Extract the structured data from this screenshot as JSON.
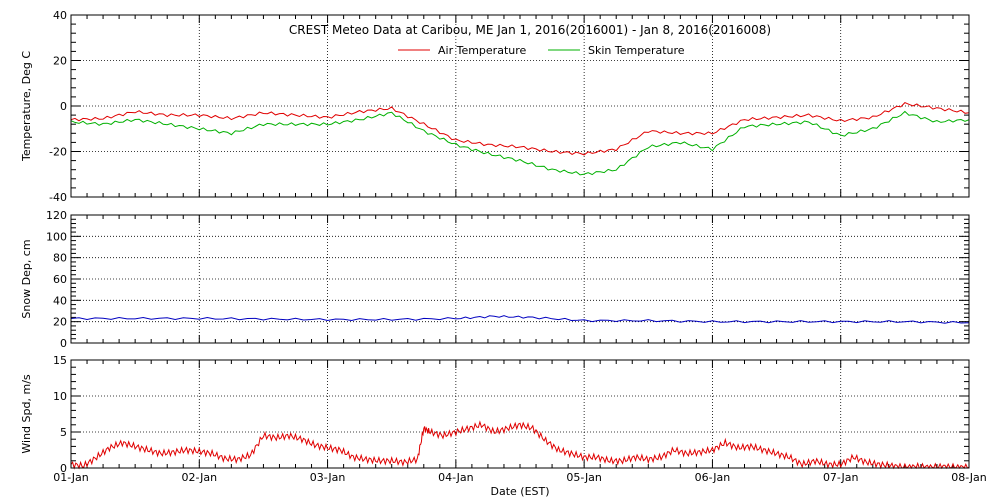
{
  "chart_data": {
    "title": "CREST Meteo Data at Caribou, ME   Jan  1, 2016(2016001) - Jan  8, 2016(2016008)",
    "xlabel": "Date (EST)",
    "x_ticks": [
      "01-Jan",
      "02-Jan",
      "03-Jan",
      "04-Jan",
      "05-Jan",
      "06-Jan",
      "07-Jan",
      "08-Jan"
    ],
    "x_range_days": [
      0,
      7
    ],
    "panels": [
      {
        "type": "line",
        "ylabel": "Temperature, Deg C",
        "ylim": [
          -40,
          40
        ],
        "yticks": [
          -40,
          -20,
          0,
          20,
          40
        ],
        "grid": true,
        "legend_position": "top-center",
        "series": [
          {
            "name": "Air Temperature",
            "color": "#e00000",
            "x": [
              0,
              0.25,
              0.5,
              0.75,
              1,
              1.25,
              1.5,
              1.75,
              2,
              2.25,
              2.5,
              2.75,
              3,
              3.25,
              3.5,
              3.75,
              4,
              4.25,
              4.5,
              4.75,
              5,
              5.25,
              5.5,
              5.75,
              6,
              6.25,
              6.5,
              6.75,
              7
            ],
            "y": [
              -6,
              -5.5,
              -2.5,
              -4,
              -4,
              -5.5,
              -3,
              -4,
              -5,
              -2.5,
              -1,
              -8,
              -15,
              -17,
              -18,
              -20,
              -21,
              -19,
              -11,
              -12,
              -12,
              -6,
              -5,
              -4,
              -6.5,
              -5,
              1,
              -1,
              -3
            ]
          },
          {
            "name": "Skin Temperature",
            "color": "#00b000",
            "x": [
              0,
              0.25,
              0.5,
              0.75,
              1,
              1.25,
              1.5,
              1.75,
              2,
              2.25,
              2.5,
              2.75,
              3,
              3.25,
              3.5,
              3.75,
              4,
              4.25,
              4.5,
              4.75,
              5,
              5.25,
              5.5,
              5.75,
              6,
              6.25,
              6.5,
              6.75,
              7
            ],
            "y": [
              -7,
              -8,
              -6,
              -8,
              -10,
              -12,
              -8,
              -8,
              -8,
              -6,
              -3,
              -11,
              -17,
              -21,
              -24,
              -28,
              -30,
              -28,
              -18,
              -16,
              -19,
              -9,
              -8,
              -7,
              -13,
              -10,
              -3,
              -7,
              -6
            ]
          }
        ]
      },
      {
        "type": "line",
        "ylabel": "Snow Dep, cm",
        "ylim": [
          0,
          120
        ],
        "yticks": [
          0,
          20,
          40,
          60,
          80,
          100,
          120
        ],
        "grid": true,
        "series": [
          {
            "color": "#0000c0",
            "x": [
              0,
              0.5,
              1,
              1.5,
              2,
              2.5,
              3,
              3.3,
              3.6,
              4,
              4.5,
              5,
              5.5,
              6,
              6.5,
              7
            ],
            "y": [
              23,
              23,
              23,
              22.5,
              22,
              22,
              23,
              25,
              24,
              21,
              21,
              20,
              20,
              20,
              20,
              19
            ]
          }
        ]
      },
      {
        "type": "line",
        "ylabel": "Wind Spd, m/s",
        "ylim": [
          0,
          15
        ],
        "yticks": [
          0,
          5,
          10,
          15
        ],
        "grid": true,
        "series": [
          {
            "color": "#e00000",
            "x": [
              0,
              0.1,
              0.2,
              0.3,
              0.4,
              0.5,
              0.6,
              0.7,
              0.8,
              0.9,
              1,
              1.1,
              1.2,
              1.3,
              1.4,
              1.5,
              1.6,
              1.7,
              1.8,
              1.9,
              2,
              2.1,
              2.2,
              2.3,
              2.4,
              2.5,
              2.6,
              2.7,
              2.75,
              2.8,
              2.9,
              3,
              3.1,
              3.2,
              3.3,
              3.4,
              3.5,
              3.6,
              3.7,
              3.8,
              3.9,
              4,
              4.1,
              4.2,
              4.3,
              4.4,
              4.5,
              4.6,
              4.7,
              4.8,
              4.9,
              5,
              5.1,
              5.2,
              5.3,
              5.4,
              5.5,
              5.6,
              5.7,
              5.8,
              5.9,
              6,
              6.1,
              6.2,
              6.3,
              6.4,
              6.5,
              6.6,
              6.7,
              6.8,
              6.9,
              7
            ],
            "y": [
              0.5,
              0.3,
              1.5,
              2.8,
              3.5,
              3,
              2.5,
              2,
              2.2,
              2.5,
              2.3,
              2,
              1.3,
              1.2,
              1.8,
              4.5,
              4.2,
              4.5,
              4,
              3.2,
              2.8,
              2.5,
              1.5,
              1.2,
              1,
              1,
              0.8,
              1.2,
              5.5,
              5,
              4.5,
              5,
              5.5,
              6,
              5,
              5.5,
              6,
              5.5,
              3.8,
              2.5,
              2,
              1.5,
              1.5,
              1,
              1,
              1.5,
              1.2,
              1.5,
              2.5,
              2,
              2.2,
              2.5,
              3.5,
              2.8,
              3,
              2.5,
              2,
              1.5,
              0.5,
              1,
              0.5,
              0.5,
              1.5,
              0.8,
              0.5,
              0.3,
              0.1,
              0.2,
              0.1,
              0.2,
              0.1,
              0.1
            ]
          }
        ]
      }
    ]
  }
}
